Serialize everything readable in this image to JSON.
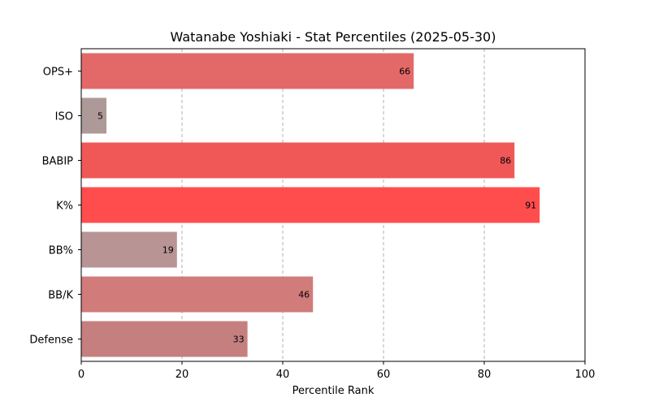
{
  "chart_data": {
    "type": "bar",
    "orientation": "horizontal",
    "title": "Watanabe Yoshiaki - Stat Percentiles (2025-05-30)",
    "xlabel": "Percentile Rank",
    "ylabel": "",
    "xlim": [
      0,
      100
    ],
    "xticks": [
      0,
      20,
      40,
      60,
      80,
      100
    ],
    "grid": "x-dashed",
    "categories": [
      "OPS+",
      "ISO",
      "BABIP",
      "K%",
      "BB%",
      "BB/K",
      "Defense"
    ],
    "values": [
      66,
      5,
      86,
      91,
      19,
      46,
      33
    ],
    "colors": [
      "#e36969",
      "#ae9999",
      "#f05858",
      "#ff4d4d",
      "#b89494",
      "#d17b7b",
      "#c57f7f"
    ]
  }
}
